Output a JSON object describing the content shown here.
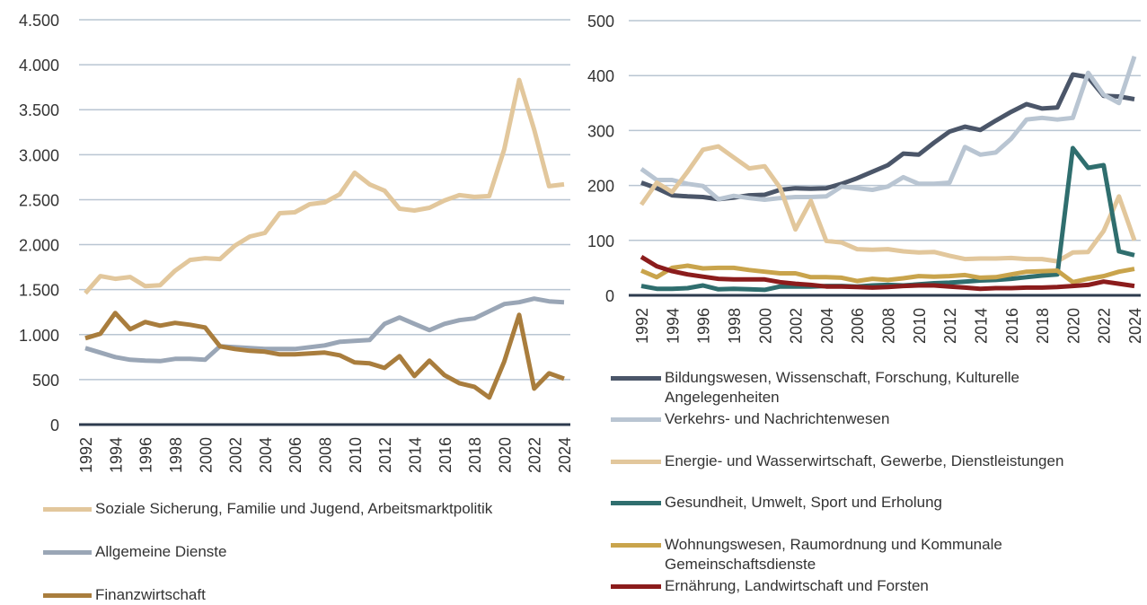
{
  "chart_data": [
    {
      "type": "line",
      "x": [
        1992,
        1993,
        1994,
        1995,
        1996,
        1997,
        1998,
        1999,
        2000,
        2001,
        2002,
        2003,
        2004,
        2005,
        2006,
        2007,
        2008,
        2009,
        2010,
        2011,
        2012,
        2013,
        2014,
        2015,
        2016,
        2017,
        2018,
        2019,
        2020,
        2021,
        2022,
        2023,
        2024
      ],
      "xlim": [
        1992,
        2024
      ],
      "xticks": [
        1992,
        1994,
        1996,
        1998,
        2000,
        2002,
        2004,
        2006,
        2008,
        2010,
        2012,
        2014,
        2016,
        2018,
        2020,
        2022,
        2024
      ],
      "ylim": [
        0,
        4500
      ],
      "yticks": [
        0,
        500,
        {
          "value": 1000,
          "label": "1.000"
        },
        {
          "value": 1500,
          "label": "1.500"
        },
        {
          "value": 2000,
          "label": "2.000"
        },
        {
          "value": 2500,
          "label": "2.500"
        },
        {
          "value": 3000,
          "label": "3.000"
        },
        {
          "value": 3500,
          "label": "3.500"
        },
        {
          "value": 4000,
          "label": "4.000"
        },
        {
          "value": 4500,
          "label": "4.500"
        }
      ],
      "grid": true,
      "series": [
        {
          "name": "Soziale Sicherung, Familie und Jugend, Arbeitsmarktpolitik",
          "color": "#e2c79c",
          "values": [
            1460,
            1650,
            1620,
            1640,
            1540,
            1550,
            1710,
            1830,
            1850,
            1840,
            1990,
            2090,
            2130,
            2350,
            2360,
            2450,
            2470,
            2560,
            2800,
            2670,
            2600,
            2400,
            2380,
            2410,
            2490,
            2550,
            2530,
            2540,
            3060,
            3830,
            3280,
            2650,
            2670
          ]
        },
        {
          "name": "Allgemeine Dienste",
          "color": "#9aa6b6",
          "values": [
            850,
            800,
            750,
            720,
            710,
            705,
            730,
            730,
            720,
            870,
            860,
            850,
            840,
            840,
            840,
            860,
            880,
            920,
            930,
            940,
            1120,
            1190,
            1120,
            1050,
            1120,
            1160,
            1180,
            1260,
            1340,
            1360,
            1400,
            1370,
            1360
          ]
        },
        {
          "name": "Finanzwirtschaft",
          "color": "#a97d3d",
          "values": [
            960,
            1010,
            1240,
            1060,
            1140,
            1100,
            1130,
            1110,
            1080,
            870,
            840,
            820,
            810,
            780,
            780,
            790,
            800,
            770,
            690,
            680,
            630,
            760,
            540,
            710,
            550,
            460,
            420,
            300,
            700,
            1220,
            400,
            570,
            510
          ]
        }
      ]
    },
    {
      "type": "line",
      "x": [
        1992,
        1993,
        1994,
        1995,
        1996,
        1997,
        1998,
        1999,
        2000,
        2001,
        2002,
        2003,
        2004,
        2005,
        2006,
        2007,
        2008,
        2009,
        2010,
        2011,
        2012,
        2013,
        2014,
        2015,
        2016,
        2017,
        2018,
        2019,
        2020,
        2021,
        2022,
        2023,
        2024
      ],
      "xlim": [
        1992,
        2024
      ],
      "xticks": [
        1992,
        1994,
        1996,
        1998,
        2000,
        2002,
        2004,
        2006,
        2008,
        2010,
        2012,
        2014,
        2016,
        2018,
        2020,
        2022,
        2024
      ],
      "ylim": [
        0,
        500
      ],
      "yticks": [
        0,
        100,
        200,
        300,
        400,
        500
      ],
      "grid": true,
      "series": [
        {
          "name": "Bildungswesen, Wissenschaft, Forschung, Kulturelle Angelegenheiten",
          "color": "#4b5669",
          "values": [
            205,
            195,
            182,
            180,
            179,
            175,
            178,
            182,
            183,
            192,
            195,
            194,
            195,
            203,
            213,
            225,
            237,
            258,
            256,
            278,
            298,
            307,
            301,
            318,
            334,
            348,
            340,
            342,
            402,
            397,
            363,
            362,
            357
          ]
        },
        {
          "name": "Verkehrs- und Nachrichtenwesen",
          "color": "#b9c5d2",
          "values": [
            230,
            210,
            210,
            203,
            199,
            175,
            181,
            177,
            174,
            177,
            179,
            179,
            180,
            198,
            195,
            192,
            198,
            215,
            203,
            203,
            205,
            270,
            256,
            260,
            285,
            320,
            323,
            320,
            323,
            405,
            365,
            350,
            435
          ]
        },
        {
          "name": "Energie- und Wasserwirtschaft, Gewerbe, Dienstleistungen",
          "color": "#e2c79c",
          "values": [
            165,
            205,
            188,
            225,
            265,
            271,
            251,
            231,
            235,
            196,
            120,
            172,
            99,
            96,
            84,
            83,
            84,
            80,
            78,
            79,
            72,
            66,
            67,
            67,
            68,
            66,
            66,
            62,
            78,
            79,
            117,
            180,
            100
          ]
        },
        {
          "name": "Gesundheit, Umwelt, Sport und Erholung",
          "color": "#2f6e6e",
          "values": [
            17,
            12,
            12,
            13,
            18,
            11,
            12,
            11,
            10,
            16,
            16,
            16,
            17,
            17,
            16,
            18,
            19,
            18,
            20,
            22,
            23,
            25,
            27,
            28,
            30,
            33,
            36,
            38,
            268,
            232,
            237,
            80,
            73
          ]
        },
        {
          "name": "Wohnungswesen, Raumordnung und Kommunale Gemeinschaftsdienste",
          "color": "#c9a44c",
          "values": [
            45,
            33,
            50,
            54,
            49,
            50,
            50,
            46,
            43,
            40,
            40,
            33,
            33,
            32,
            26,
            30,
            28,
            31,
            35,
            34,
            35,
            37,
            32,
            33,
            38,
            43,
            44,
            45,
            24,
            30,
            35,
            43,
            48
          ]
        },
        {
          "name": "Ernährung, Landwirtschaft und Forsten",
          "color": "#8b1c1c",
          "values": [
            70,
            53,
            44,
            38,
            34,
            30,
            29,
            29,
            29,
            24,
            21,
            19,
            16,
            16,
            15,
            14,
            15,
            17,
            18,
            18,
            16,
            14,
            12,
            13,
            13,
            14,
            14,
            15,
            17,
            19,
            25,
            21,
            17
          ]
        }
      ]
    }
  ]
}
